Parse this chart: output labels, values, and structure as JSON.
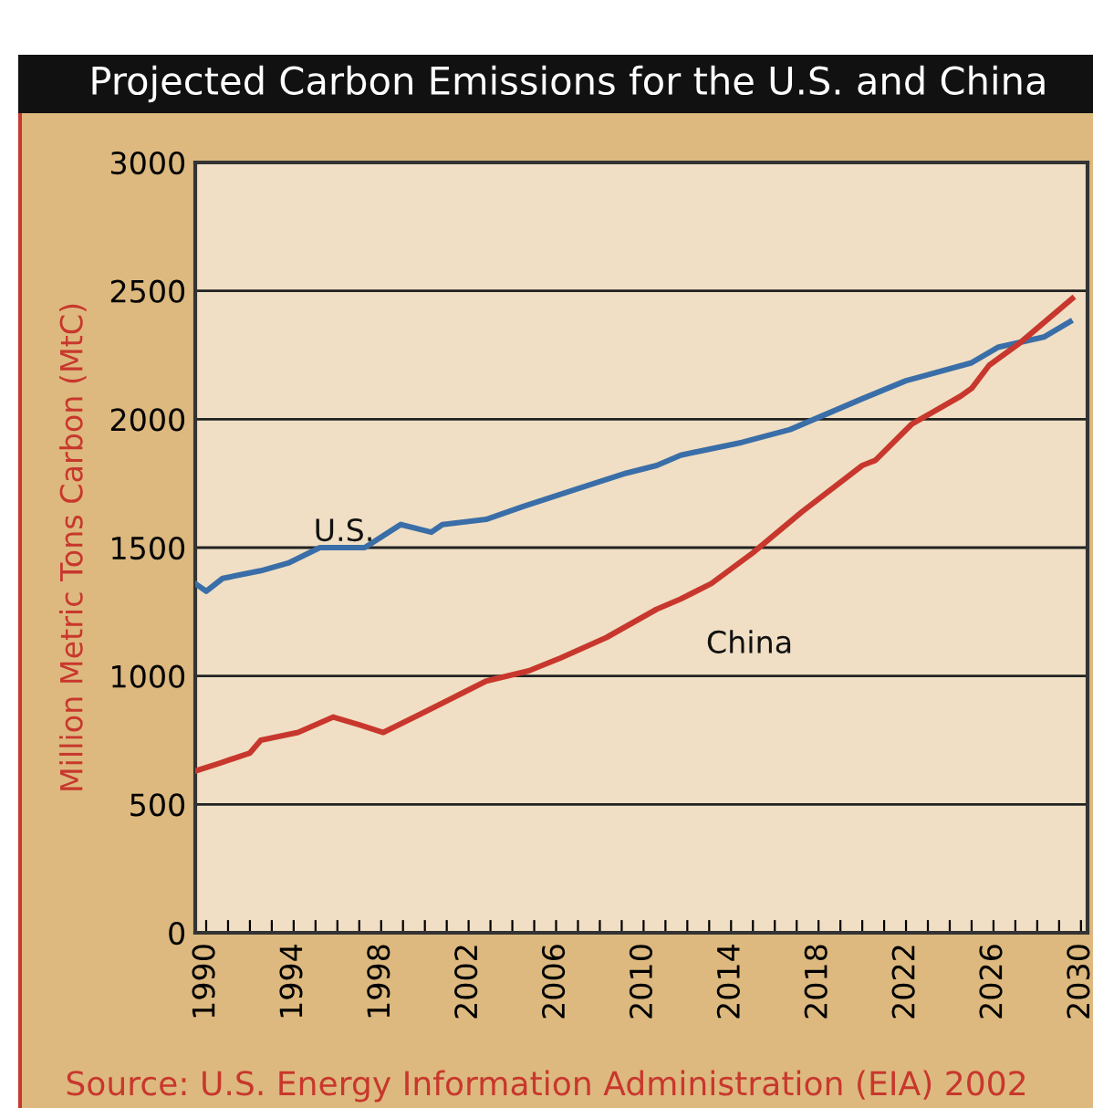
{
  "chart_data": {
    "type": "line",
    "title": "Projected Carbon Emissions for the U.S. and China",
    "ylabel": "Million Metric Tons Carbon (MtC)",
    "annotations": [
      "Source: U.S. Energy Information Administration (EIA) 2002"
    ],
    "series": [
      {
        "name": "U.S.",
        "color": "#3a6ea8",
        "x": [
          1989.5,
          1990,
          1990.75,
          1992.5,
          1993.75,
          1995.2,
          1997.25,
          1998.9,
          2000.3,
          2000.8,
          2002.8,
          2004.5,
          2007,
          2009.2,
          2010.6,
          2011.7,
          2014.5,
          2016.7,
          2017.8,
          2020,
          2022,
          2025,
          2026.2,
          2028.3,
          2029.5
        ],
        "values": [
          1360,
          1330,
          1380,
          1410,
          1440,
          1500,
          1500,
          1590,
          1560,
          1590,
          1610,
          1660,
          1730,
          1790,
          1820,
          1860,
          1910,
          1960,
          2000,
          2080,
          2150,
          2220,
          2280,
          2320,
          2380
        ]
      },
      {
        "name": "China",
        "color": "#c8372d",
        "x": [
          1989.5,
          1990.6,
          1992,
          1992.5,
          1994.2,
          1995.8,
          1997,
          1998.1,
          2000,
          2002.8,
          2004.75,
          2006.2,
          2008.3,
          2010.6,
          2011.7,
          2013.1,
          2015,
          2017.25,
          2020,
          2020.6,
          2022.25,
          2024.5,
          2025,
          2025.8,
          2027.25,
          2029.6
        ],
        "values": [
          630,
          660,
          700,
          750,
          780,
          840,
          810,
          780,
          860,
          980,
          1020,
          1070,
          1150,
          1260,
          1300,
          1360,
          1480,
          1640,
          1820,
          1840,
          1980,
          2090,
          2120,
          2210,
          2300,
          2470
        ]
      }
    ],
    "xlim": [
      1989.5,
      2030.3
    ],
    "ylim": [
      0,
      3000
    ],
    "xticks": [
      1990,
      {
        "value": 1991,
        "label": null
      },
      {
        "value": 1992,
        "label": null
      },
      {
        "value": 1993,
        "label": null
      },
      1994,
      {
        "value": 1995,
        "label": null
      },
      {
        "value": 1996,
        "label": null
      },
      {
        "value": 1997,
        "label": null
      },
      1998,
      {
        "value": 1999,
        "label": null
      },
      {
        "value": 2000,
        "label": null
      },
      {
        "value": 2001,
        "label": null
      },
      2002,
      {
        "value": 2003,
        "label": null
      },
      {
        "value": 2004,
        "label": null
      },
      {
        "value": 2005,
        "label": null
      },
      2006,
      {
        "value": 2007,
        "label": null
      },
      {
        "value": 2008,
        "label": null
      },
      {
        "value": 2009,
        "label": null
      },
      2010,
      {
        "value": 2011,
        "label": null
      },
      {
        "value": 2012,
        "label": null
      },
      {
        "value": 2013,
        "label": null
      },
      2014,
      {
        "value": 2015,
        "label": null
      },
      {
        "value": 2016,
        "label": null
      },
      {
        "value": 2017,
        "label": null
      },
      2018,
      {
        "value": 2019,
        "label": null
      },
      {
        "value": 2020,
        "label": null
      },
      {
        "value": 2021,
        "label": null
      },
      2022,
      {
        "value": 2023,
        "label": null
      },
      {
        "value": 2024,
        "label": null
      },
      {
        "value": 2025,
        "label": null
      },
      2026,
      {
        "value": 2027,
        "label": null
      },
      {
        "value": 2028,
        "label": null
      },
      {
        "value": 2029,
        "label": null
      },
      2030
    ],
    "yticks": [
      0,
      500,
      1000,
      1500,
      2000,
      2500,
      3000
    ],
    "grid": "y",
    "legend": false,
    "marker": "none",
    "line_style": "solid"
  }
}
